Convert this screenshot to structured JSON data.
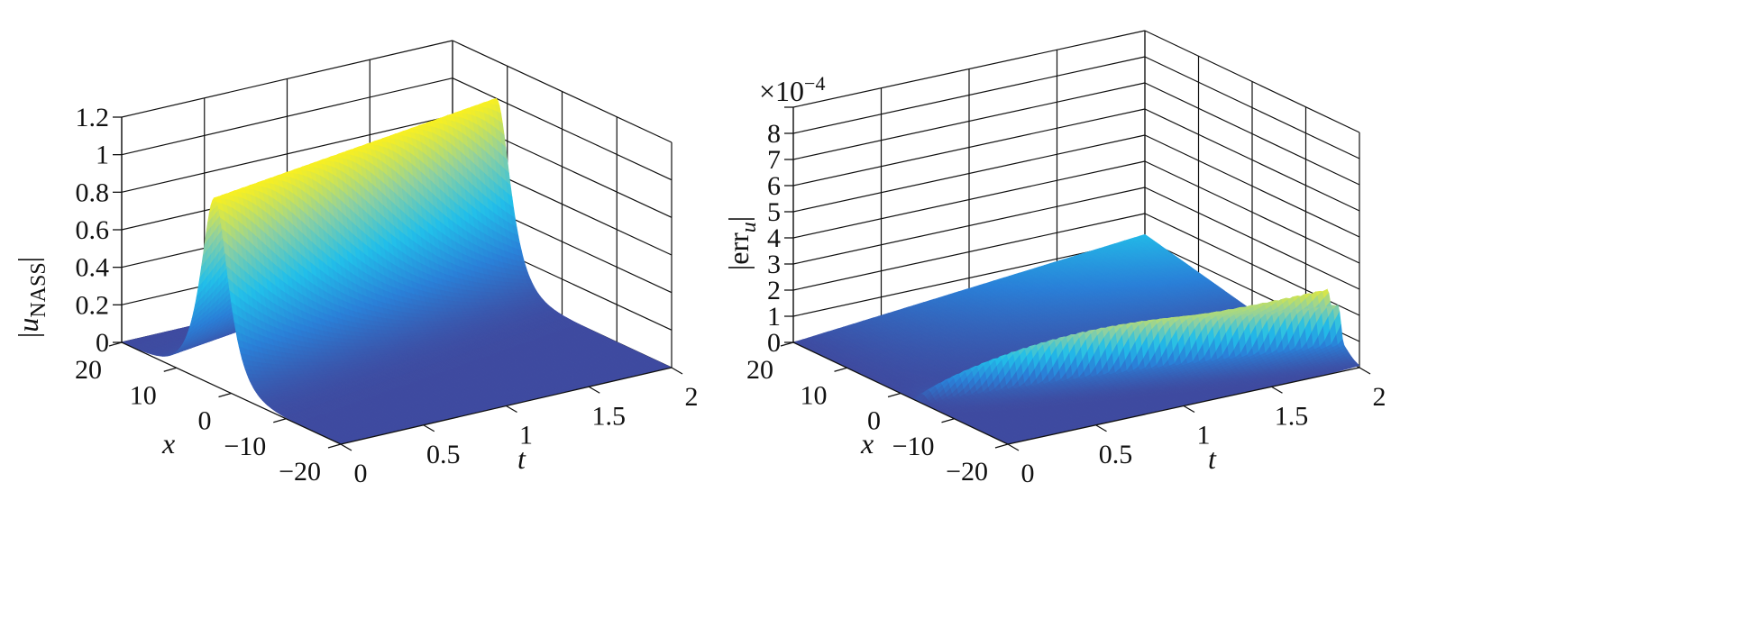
{
  "chart_data": [
    {
      "type": "surface",
      "xlabel": "x",
      "ylabel": "t",
      "zlabel": {
        "delim": "|",
        "main": "u",
        "sub": "NASS"
      },
      "x_range": [
        -20,
        20
      ],
      "t_range": [
        0,
        2
      ],
      "zlim": [
        0,
        1.2
      ],
      "x_ticks": [
        "20",
        "10",
        "0",
        "−10",
        "−20"
      ],
      "x_tick_values": [
        20,
        10,
        0,
        -10,
        -20
      ],
      "t_ticks": [
        "0",
        "0.5",
        "1",
        "1.5",
        "2"
      ],
      "t_tick_values": [
        0,
        0.5,
        1,
        1.5,
        2
      ],
      "z_ticks": [
        "0",
        "0.2",
        "0.4",
        "0.6",
        "0.8",
        "1",
        "1.2"
      ],
      "z_tick_values": [
        0,
        0.2,
        0.4,
        0.6,
        0.8,
        1,
        1.2
      ],
      "grid": true,
      "colormap": [
        "#3f4ba0",
        "#2a80d8",
        "#22bfe9",
        "#8fd0a0",
        "#f9f020"
      ],
      "surface": {
        "kind": "single soliton ridge",
        "peak": 1.0,
        "ridge_x_at_t0": 3,
        "ridge_x_at_t2": 12
      }
    },
    {
      "type": "surface",
      "xlabel": "x",
      "ylabel": "t",
      "zlabel": {
        "delim": "|",
        "main": "err",
        "sub": "u"
      },
      "multiplier": "×10",
      "multiplier_exp": "−4",
      "x_range": [
        -20,
        20
      ],
      "t_range": [
        0,
        2
      ],
      "zlim": [
        0,
        9
      ],
      "x_ticks": [
        "20",
        "10",
        "0",
        "−10",
        "−20"
      ],
      "x_tick_values": [
        20,
        10,
        0,
        -10,
        -20
      ],
      "t_ticks": [
        "0",
        "0.5",
        "1",
        "1.5",
        "2"
      ],
      "t_tick_values": [
        0,
        0.5,
        1,
        1.5,
        2
      ],
      "z_ticks": [
        "0",
        "1",
        "2",
        "3",
        "4",
        "5",
        "6",
        "7",
        "8"
      ],
      "z_tick_values": [
        0,
        1,
        2,
        3,
        4,
        5,
        6,
        7,
        8
      ],
      "grid": true,
      "colormap": [
        "#3f4ba0",
        "#2a80d8",
        "#22bfe9",
        "#8fd0a0",
        "#f9f020"
      ],
      "surface": {
        "kind": "two thin error ridges",
        "peak": 2.4,
        "ridge_x_at_t0": -3,
        "ridge_x_at_t2": [
          -14,
          -16
        ],
        "background_at_t2": 1.2
      }
    }
  ]
}
